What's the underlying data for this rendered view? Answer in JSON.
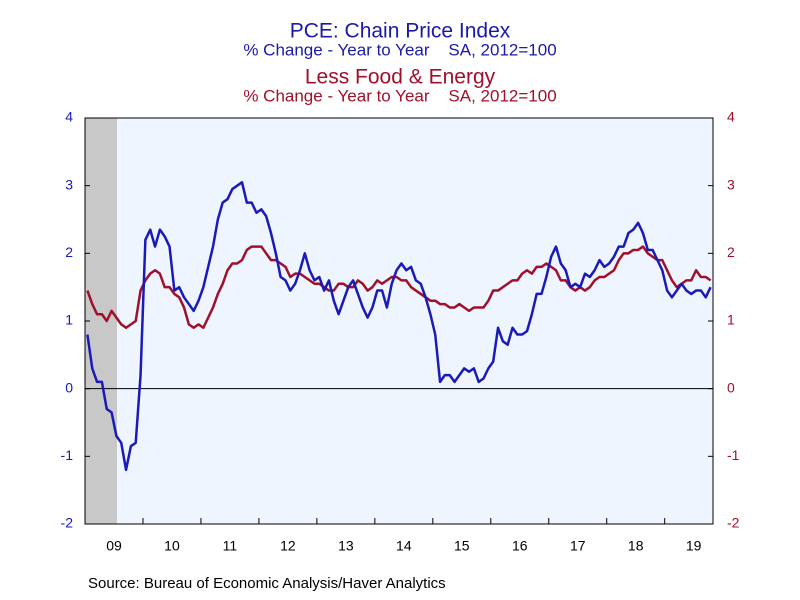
{
  "chart_data": {
    "type": "line",
    "titles": [
      {
        "text": "PCE: Chain Price Index",
        "color": "#1a1aa8"
      },
      {
        "text": "% Change - Year to Year    SA, 2012=100",
        "color": "#1a1aa8"
      },
      {
        "text": "Less Food & Energy",
        "color": "#a0102a"
      },
      {
        "text": "% Change - Year to Year    SA, 2012=100",
        "color": "#a0102a"
      }
    ],
    "source": "Source:  Bureau of Economic Analysis/Haver Analytics",
    "categories": [
      null,
      null,
      null,
      null,
      null,
      null,
      "09",
      null,
      null,
      null,
      null,
      null,
      null,
      null,
      null,
      null,
      null,
      null,
      "10",
      null,
      null,
      null,
      null,
      null,
      null,
      null,
      null,
      null,
      null,
      null,
      "11",
      null,
      null,
      null,
      null,
      null,
      null,
      null,
      null,
      null,
      null,
      null,
      "12",
      null,
      null,
      null,
      null,
      null,
      null,
      null,
      null,
      null,
      null,
      null,
      "13",
      null,
      null,
      null,
      null,
      null,
      null,
      null,
      null,
      null,
      null,
      null,
      "14",
      null,
      null,
      null,
      null,
      null,
      null,
      null,
      null,
      null,
      null,
      null,
      "15",
      null,
      null,
      null,
      null,
      null,
      null,
      null,
      null,
      null,
      null,
      null,
      "16",
      null,
      null,
      null,
      null,
      null,
      null,
      null,
      null,
      null,
      null,
      null,
      "17",
      null,
      null,
      null,
      null,
      null,
      null,
      null,
      null,
      null,
      null,
      null,
      "18",
      null,
      null,
      null,
      null,
      null,
      null,
      null,
      null,
      null,
      null,
      null,
      "19",
      null,
      null,
      null
    ],
    "series": [
      {
        "name": "PCE: Chain Price Index",
        "color": "#1a1ab8",
        "axis": "y",
        "values": [
          0.8,
          0.3,
          0.1,
          0.1,
          -0.3,
          -0.35,
          -0.7,
          -0.8,
          -1.2,
          -0.85,
          -0.8,
          0.2,
          2.2,
          2.35,
          2.1,
          2.35,
          2.25,
          2.1,
          1.45,
          1.5,
          1.35,
          1.25,
          1.15,
          1.3,
          1.5,
          1.8,
          2.1,
          2.5,
          2.75,
          2.8,
          2.95,
          3.0,
          3.05,
          2.75,
          2.75,
          2.6,
          2.65,
          2.55,
          2.3,
          2.0,
          1.65,
          1.6,
          1.45,
          1.55,
          1.75,
          2.0,
          1.75,
          1.6,
          1.65,
          1.45,
          1.6,
          1.3,
          1.1,
          1.3,
          1.5,
          1.6,
          1.4,
          1.2,
          1.05,
          1.2,
          1.45,
          1.45,
          1.2,
          1.55,
          1.75,
          1.85,
          1.75,
          1.8,
          1.6,
          1.55,
          1.35,
          1.1,
          0.8,
          0.1,
          0.2,
          0.2,
          0.1,
          0.2,
          0.3,
          0.25,
          0.3,
          0.1,
          0.15,
          0.3,
          0.4,
          0.9,
          0.7,
          0.65,
          0.9,
          0.8,
          0.8,
          0.85,
          1.1,
          1.4,
          1.4,
          1.65,
          1.95,
          2.1,
          1.85,
          1.75,
          1.5,
          1.55,
          1.5,
          1.7,
          1.65,
          1.75,
          1.9,
          1.8,
          1.85,
          1.95,
          2.1,
          2.1,
          2.3,
          2.35,
          2.45,
          2.3,
          2.05,
          2.05,
          1.9,
          1.75,
          1.45,
          1.35,
          1.45,
          1.55,
          1.45,
          1.4,
          1.45,
          1.45,
          1.35,
          1.5
        ]
      },
      {
        "name": "Less Food & Energy",
        "color": "#a0102a",
        "axis": "y2",
        "values": [
          1.45,
          1.25,
          1.1,
          1.1,
          1.0,
          1.15,
          1.05,
          0.95,
          0.9,
          0.95,
          1.0,
          1.45,
          1.6,
          1.7,
          1.75,
          1.7,
          1.5,
          1.5,
          1.4,
          1.35,
          1.2,
          0.95,
          0.9,
          0.95,
          0.9,
          1.05,
          1.2,
          1.4,
          1.55,
          1.75,
          1.85,
          1.85,
          1.9,
          2.05,
          2.1,
          2.1,
          2.1,
          2.0,
          1.9,
          1.9,
          1.85,
          1.8,
          1.65,
          1.7,
          1.7,
          1.65,
          1.6,
          1.55,
          1.55,
          1.5,
          1.45,
          1.45,
          1.55,
          1.55,
          1.5,
          1.5,
          1.6,
          1.55,
          1.45,
          1.5,
          1.6,
          1.55,
          1.6,
          1.65,
          1.65,
          1.6,
          1.6,
          1.5,
          1.45,
          1.4,
          1.35,
          1.3,
          1.3,
          1.25,
          1.25,
          1.2,
          1.2,
          1.25,
          1.2,
          1.15,
          1.2,
          1.2,
          1.2,
          1.3,
          1.45,
          1.45,
          1.5,
          1.55,
          1.6,
          1.6,
          1.7,
          1.75,
          1.7,
          1.8,
          1.8,
          1.85,
          1.8,
          1.75,
          1.6,
          1.6,
          1.5,
          1.45,
          1.5,
          1.45,
          1.5,
          1.6,
          1.65,
          1.65,
          1.7,
          1.75,
          1.9,
          2.0,
          2.0,
          2.05,
          2.05,
          2.1,
          2.0,
          1.95,
          1.9,
          1.9,
          1.75,
          1.6,
          1.5,
          1.55,
          1.6,
          1.6,
          1.75,
          1.65,
          1.65,
          1.6
        ]
      }
    ],
    "ylim": [
      -2,
      4
    ],
    "yticks": [
      -2,
      -1,
      0,
      1,
      2,
      3,
      4
    ],
    "y2lim": [
      -2,
      4
    ],
    "y2ticks": [
      -2,
      -1,
      0,
      1,
      2,
      3,
      4
    ]
  }
}
